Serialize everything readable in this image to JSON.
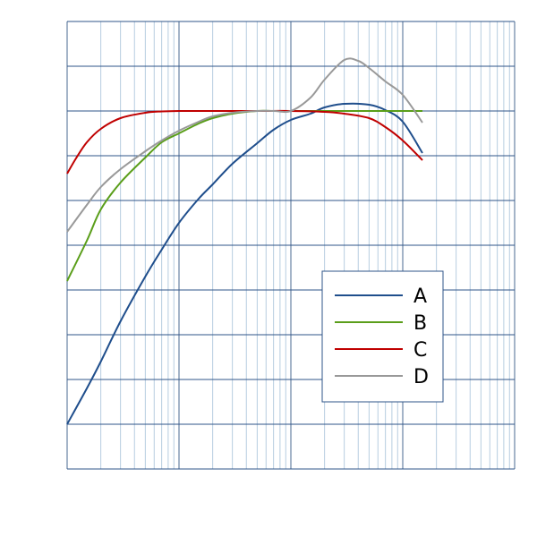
{
  "chart_data": {
    "type": "line",
    "title": "",
    "xlabel": "",
    "ylabel": "",
    "x_scale": "log",
    "xlim": [
      1,
      10000
    ],
    "ylim": [
      -40,
      10
    ],
    "grid": true,
    "legend_position": "center-right",
    "series": [
      {
        "name": "A",
        "color": "#1f4e8c",
        "x": [
          1,
          1.5,
          2,
          3,
          5,
          7,
          10,
          15,
          20,
          30,
          50,
          70,
          100,
          150,
          200,
          300,
          500,
          700,
          1000,
          1500
        ],
        "y": [
          -35,
          -31,
          -28,
          -23.5,
          -18.5,
          -15.5,
          -12.5,
          -9.8,
          -8.2,
          -5.9,
          -3.6,
          -2.1,
          -1,
          -0.3,
          0.4,
          0.8,
          0.7,
          0.1,
          -1.2,
          -4.7
        ]
      },
      {
        "name": "B",
        "color": "#5a9e1a",
        "x": [
          1,
          1.5,
          2,
          3,
          5,
          7,
          10,
          15,
          20,
          30,
          50,
          70,
          100,
          150,
          200,
          300,
          500,
          700,
          1000,
          1500
        ],
        "y": [
          -19,
          -14.5,
          -11,
          -8,
          -5.2,
          -3.5,
          -2.5,
          -1.4,
          -0.8,
          -0.3,
          0,
          0,
          0,
          0,
          0,
          0,
          0,
          0,
          0,
          0
        ]
      },
      {
        "name": "C",
        "color": "#c00000",
        "x": [
          1,
          1.2,
          1.5,
          2,
          3,
          5,
          7,
          10,
          20,
          50,
          100,
          200,
          300,
          500,
          700,
          1000,
          1500
        ],
        "y": [
          -7,
          -5.3,
          -3.5,
          -2,
          -0.8,
          -0.2,
          -0.05,
          0,
          0,
          0,
          0,
          -0.1,
          -0.3,
          -0.8,
          -1.8,
          -3.3,
          -5.5
        ]
      },
      {
        "name": "D",
        "color": "#999999",
        "x": [
          1,
          1.5,
          2,
          3,
          5,
          7,
          10,
          15,
          20,
          30,
          50,
          70,
          100,
          150,
          200,
          300,
          400,
          500,
          700,
          1000,
          1500
        ],
        "y": [
          -13.5,
          -10.5,
          -8.5,
          -6.5,
          -4.5,
          -3.3,
          -2.2,
          -1.2,
          -0.6,
          -0.2,
          0,
          0,
          0,
          1.5,
          3.5,
          5.7,
          5.6,
          4.8,
          3.3,
          1.8,
          -1.3
        ]
      }
    ]
  }
}
